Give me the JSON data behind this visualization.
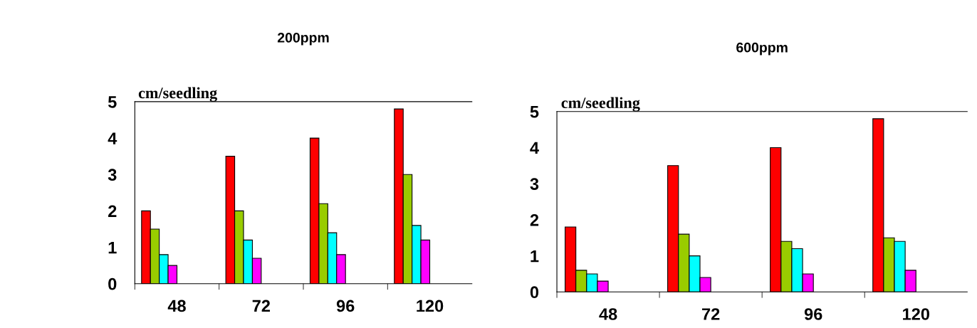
{
  "chart_data": [
    {
      "type": "bar",
      "title": "200ppm",
      "ylabel": "cm/seedling",
      "categories": [
        "48",
        "72",
        "96",
        "120"
      ],
      "ylim": [
        0,
        5
      ],
      "yticks": [
        0,
        1,
        2,
        3,
        4,
        5
      ],
      "grid": false,
      "legend": false,
      "series": [
        {
          "color": "#ff0000",
          "values": [
            2,
            3.5,
            4,
            4.8
          ]
        },
        {
          "color": "#99cc00",
          "values": [
            1.5,
            2,
            2.2,
            3
          ]
        },
        {
          "color": "#00ffff",
          "values": [
            0.8,
            1.2,
            1.4,
            1.6
          ]
        },
        {
          "color": "#ff00ff",
          "values": [
            0.5,
            0.7,
            0.8,
            1.2
          ]
        }
      ]
    },
    {
      "type": "bar",
      "title": "600ppm",
      "ylabel": "cm/seedling",
      "categories": [
        "48",
        "72",
        "96",
        "120"
      ],
      "ylim": [
        0,
        5
      ],
      "yticks": [
        0,
        1,
        2,
        3,
        4,
        5
      ],
      "grid": false,
      "legend": false,
      "series": [
        {
          "color": "#ff0000",
          "values": [
            1.8,
            3.5,
            4,
            4.8
          ]
        },
        {
          "color": "#99cc00",
          "values": [
            0.6,
            1.6,
            1.4,
            1.5
          ]
        },
        {
          "color": "#00ffff",
          "values": [
            0.5,
            1.0,
            1.2,
            1.4
          ]
        },
        {
          "color": "#ff00ff",
          "values": [
            0.3,
            0.4,
            0.5,
            0.6
          ]
        }
      ]
    }
  ]
}
